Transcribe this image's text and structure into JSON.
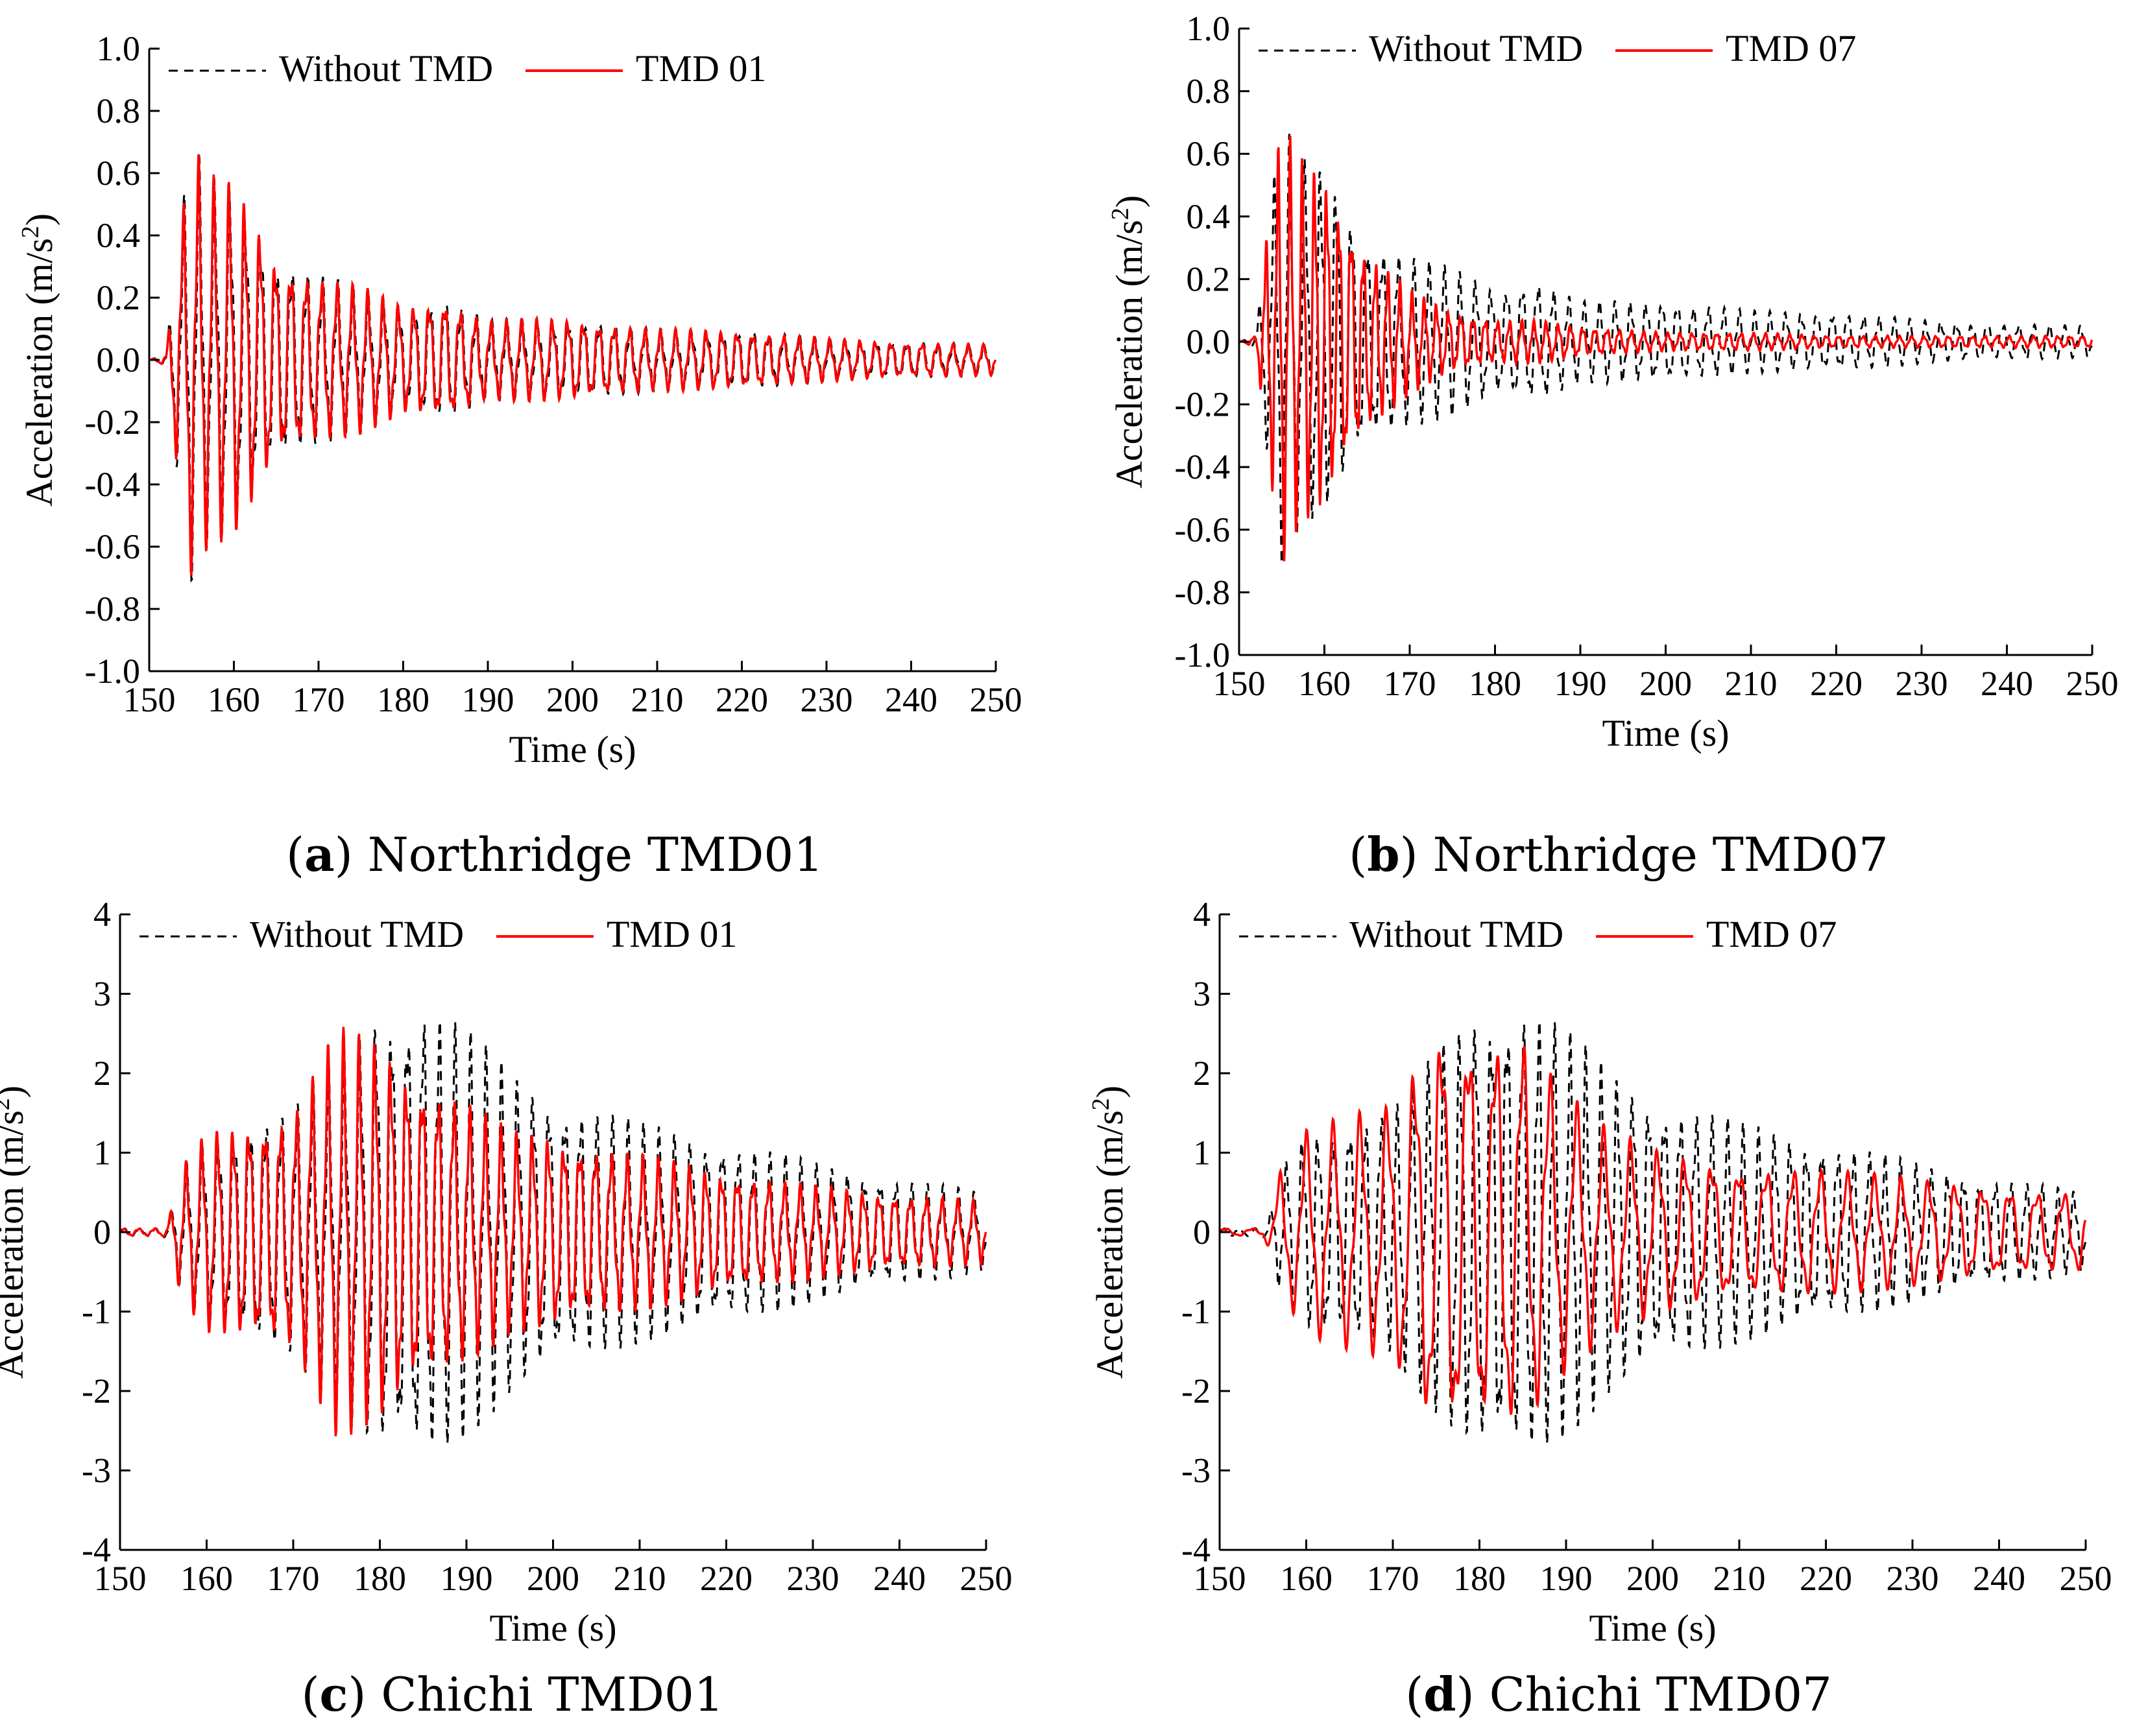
{
  "panels": [
    {
      "caption_letter": "a",
      "caption_text": "Northridge TMD01",
      "legend": [
        "Without TMD",
        "TMD 01"
      ],
      "xlabel": "Time (s)",
      "ylabel": "Acceleration (m/s",
      "ylabel_sup": "2",
      "ylabel_end": ")"
    },
    {
      "caption_letter": "b",
      "caption_text": "Northridge TMD07",
      "legend": [
        "Without TMD",
        "TMD 07"
      ],
      "xlabel": "Time (s)",
      "ylabel": "Acceleration (m/s",
      "ylabel_sup": "2",
      "ylabel_end": ")"
    },
    {
      "caption_letter": "c",
      "caption_text": "Chichi TMD01",
      "legend": [
        "Without TMD",
        "TMD 01"
      ],
      "xlabel": "Time (s)",
      "ylabel": "Acceleration (m/s",
      "ylabel_sup": "2",
      "ylabel_end": ")"
    },
    {
      "caption_letter": "d",
      "caption_text": "Chichi TMD07",
      "legend": [
        "Without TMD",
        "TMD 07"
      ],
      "xlabel": "Time (s)",
      "ylabel": "Acceleration (m/s",
      "ylabel_sup": "2",
      "ylabel_end": ")"
    }
  ],
  "chart_data": [
    {
      "type": "line",
      "xlim": [
        150,
        250
      ],
      "ylim": [
        -1.0,
        1.0
      ],
      "x_ticks": [
        "150",
        "160",
        "170",
        "180",
        "190",
        "200",
        "210",
        "220",
        "230",
        "240",
        "250"
      ],
      "y_ticks": [
        "1.0",
        "0.8",
        "0.6",
        "0.4",
        "0.2",
        "0.0",
        "-0.2",
        "-0.4",
        "-0.6",
        "-0.8",
        "-1.0"
      ],
      "legend_position": "top-left",
      "series": [
        {
          "name": "Without TMD",
          "color": "#000000",
          "style": "dashed",
          "envelope": {
            "t": [
              150,
              152,
              153,
              155,
              157,
              160,
              162,
              165,
              170,
              175,
              180,
              185,
              190,
              200,
              210,
              220,
              230,
              240,
              250
            ],
            "amp": [
              0,
              0.02,
              0.3,
              0.72,
              0.6,
              0.58,
              0.5,
              0.35,
              0.28,
              0.24,
              0.18,
              0.21,
              0.13,
              0.14,
              0.1,
              0.1,
              0.07,
              0.06,
              0.05
            ]
          },
          "freq_hz": 0.55
        },
        {
          "name": "TMD 01",
          "color": "#ff0000",
          "style": "solid",
          "envelope": {
            "t": [
              150,
              152,
              153,
              155,
              157,
              160,
              162,
              165,
              170,
              175,
              180,
              185,
              190,
              200,
              210,
              220,
              230,
              240,
              250
            ],
            "amp": [
              0,
              0.02,
              0.3,
              0.72,
              0.6,
              0.58,
              0.5,
              0.35,
              0.28,
              0.24,
              0.18,
              0.21,
              0.13,
              0.14,
              0.1,
              0.1,
              0.07,
              0.06,
              0.05
            ]
          },
          "freq_hz": 0.55
        }
      ]
    },
    {
      "type": "line",
      "xlim": [
        150,
        250
      ],
      "ylim": [
        -1.0,
        1.0
      ],
      "x_ticks": [
        "150",
        "160",
        "170",
        "180",
        "190",
        "200",
        "210",
        "220",
        "230",
        "240",
        "250"
      ],
      "y_ticks": [
        "1.0",
        "0.8",
        "0.6",
        "0.4",
        "0.2",
        "0.0",
        "-0.2",
        "-0.4",
        "-0.6",
        "-0.8",
        "-1.0"
      ],
      "legend_position": "top-left",
      "series": [
        {
          "name": "Without TMD",
          "color": "#000000",
          "style": "dashed",
          "envelope": {
            "t": [
              150,
              152,
              153,
              155,
              157,
              160,
              162,
              165,
              170,
              175,
              180,
              185,
              190,
              200,
              210,
              220,
              230,
              240,
              250
            ],
            "amp": [
              0,
              0.02,
              0.3,
              0.72,
              0.6,
              0.58,
              0.5,
              0.35,
              0.28,
              0.24,
              0.18,
              0.21,
              0.13,
              0.14,
              0.1,
              0.1,
              0.07,
              0.06,
              0.05
            ]
          },
          "freq_hz": 0.55
        },
        {
          "name": "TMD 07",
          "color": "#ff0000",
          "style": "solid",
          "envelope": {
            "t": [
              150,
              152,
              153,
              155,
              157,
              160,
              162,
              165,
              170,
              175,
              180,
              185,
              190,
              200,
              210,
              220,
              230,
              240,
              250
            ],
            "amp": [
              0,
              0.02,
              0.3,
              0.72,
              0.6,
              0.56,
              0.45,
              0.3,
              0.17,
              0.1,
              0.07,
              0.07,
              0.05,
              0.03,
              0.03,
              0.02,
              0.02,
              0.02,
              0.02
            ]
          },
          "freq_hz": 0.7
        }
      ]
    },
    {
      "type": "line",
      "xlim": [
        150,
        250
      ],
      "ylim": [
        -4,
        4
      ],
      "x_ticks": [
        "150",
        "160",
        "170",
        "180",
        "190",
        "200",
        "210",
        "220",
        "230",
        "240",
        "250"
      ],
      "y_ticks": [
        "4",
        "3",
        "2",
        "1",
        "0",
        "-1",
        "-2",
        "-3",
        "-4"
      ],
      "legend_position": "top-left",
      "series": [
        {
          "name": "Without TMD",
          "color": "#000000",
          "style": "dashed",
          "envelope": {
            "t": [
              150,
              155,
              156,
              157,
              160,
              165,
              170,
              175,
              180,
              185,
              190,
              195,
              200,
              210,
              220,
              230,
              240,
              250
            ],
            "amp": [
              0.05,
              0.05,
              0.3,
              0.8,
              1.3,
              1.5,
              1.6,
              2.3,
              3.0,
              3.1,
              2.6,
              2.1,
              1.8,
              1.4,
              1.2,
              0.9,
              0.7,
              0.5
            ]
          },
          "freq_hz": 0.55
        },
        {
          "name": "TMD 01",
          "color": "#ff0000",
          "style": "solid",
          "envelope": {
            "t": [
              150,
              155,
              156,
              157,
              160,
              165,
              170,
              175,
              180,
              185,
              190,
              195,
              200,
              210,
              220,
              230,
              240,
              250
            ],
            "amp": [
              0.05,
              0.05,
              0.3,
              0.8,
              1.3,
              1.5,
              1.6,
              2.6,
              2.5,
              2.1,
              1.7,
              1.3,
              1.3,
              1.0,
              0.8,
              0.6,
              0.5,
              0.4
            ]
          },
          "freq_hz": 0.55
        }
      ]
    },
    {
      "type": "line",
      "xlim": [
        150,
        250
      ],
      "ylim": [
        -4,
        4
      ],
      "x_ticks": [
        "150",
        "160",
        "170",
        "180",
        "190",
        "200",
        "210",
        "220",
        "230",
        "240",
        "250"
      ],
      "y_ticks": [
        "4",
        "3",
        "2",
        "1",
        "0",
        "-1",
        "-2",
        "-3",
        "-4"
      ],
      "legend_position": "top-left",
      "series": [
        {
          "name": "Without TMD",
          "color": "#000000",
          "style": "dashed",
          "envelope": {
            "t": [
              150,
              155,
              156,
              157,
              160,
              165,
              170,
              175,
              180,
              185,
              190,
              195,
              200,
              210,
              220,
              230,
              240,
              250
            ],
            "amp": [
              0.05,
              0.05,
              0.3,
              0.8,
              1.3,
              1.5,
              1.6,
              2.3,
              3.0,
              3.1,
              2.6,
              2.1,
              1.8,
              1.4,
              1.2,
              0.9,
              0.7,
              0.5
            ]
          },
          "freq_hz": 0.55
        },
        {
          "name": "TMD 07",
          "color": "#ff0000",
          "style": "solid",
          "envelope": {
            "t": [
              150,
              155,
              156,
              157,
              160,
              165,
              170,
              175,
              180,
              185,
              190,
              195,
              200,
              210,
              220,
              230,
              240,
              250
            ],
            "amp": [
              0.05,
              0.05,
              0.3,
              0.8,
              1.3,
              1.5,
              1.7,
              2.8,
              2.7,
              2.6,
              1.8,
              1.3,
              1.1,
              0.9,
              0.8,
              0.7,
              0.6,
              0.5
            ]
          },
          "freq_hz": 0.32
        }
      ]
    }
  ]
}
